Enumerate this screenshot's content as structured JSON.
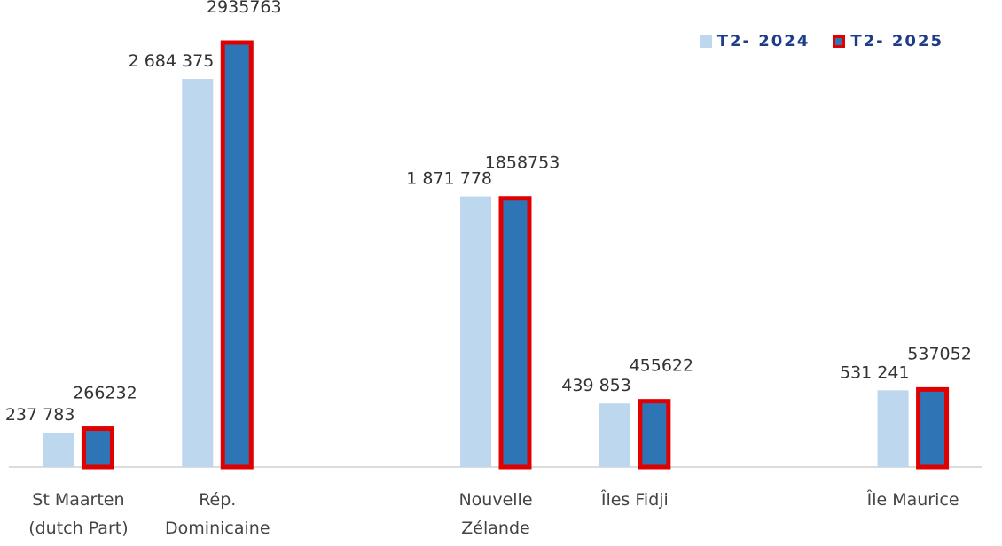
{
  "chart_data": {
    "type": "bar",
    "categories": [
      "St Maarten (dutch Part)",
      "Rép. Dominicaine",
      null,
      "Nouvelle Zélande",
      "Îles Fidji",
      null,
      "Île Maurice"
    ],
    "series": [
      {
        "name": "T2- 2024",
        "color": "#bdd7ee",
        "values": [
          237783,
          2684375,
          null,
          1871778,
          439853,
          null,
          531241
        ],
        "value_labels": [
          "237 783",
          "2 684 375",
          null,
          "1 871 778",
          "439 853",
          null,
          "531 241"
        ]
      },
      {
        "name": "T2- 2025",
        "color": "#2e75b6",
        "border": "#e00000",
        "values": [
          266232,
          2935763,
          null,
          1858753,
          455622,
          null,
          537052
        ]
      }
    ],
    "ylim": [
      0,
      3230000
    ]
  }
}
